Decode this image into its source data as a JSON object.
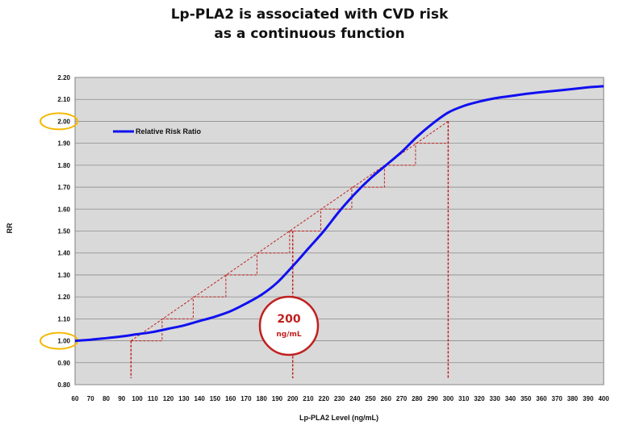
{
  "title_line1": "Lp-PLA2 is associated with CVD risk",
  "title_line2": "as a continuous function",
  "callout": {
    "value": "200",
    "unit": "ng/mL"
  },
  "colors": {
    "plot_bg": "#d9d9d9",
    "curve": "#1010f0",
    "dash": "#c0201e",
    "highlight": "#f5b800",
    "grid": "#8c8c8c"
  },
  "chart_data": {
    "type": "line",
    "xlabel": "Lp-PLA2 Level (ng/mL)",
    "ylabel": "RR",
    "xlim": [
      60,
      400
    ],
    "ylim": [
      0.8,
      2.2
    ],
    "x_ticks": [
      60,
      70,
      80,
      90,
      100,
      110,
      120,
      130,
      140,
      150,
      160,
      170,
      180,
      190,
      200,
      210,
      220,
      230,
      240,
      250,
      260,
      270,
      280,
      290,
      300,
      310,
      320,
      330,
      340,
      350,
      360,
      370,
      380,
      390,
      400
    ],
    "y_ticks": [
      0.8,
      0.9,
      1.0,
      1.1,
      1.2,
      1.3,
      1.4,
      1.5,
      1.6,
      1.7,
      1.8,
      1.9,
      2.0,
      2.1,
      2.2
    ],
    "highlighted_y_ticks": [
      1.0,
      2.0
    ],
    "grid": true,
    "legend_position": "top-left",
    "series": [
      {
        "name": "Relative Risk Ratio",
        "x": [
          60,
          70,
          80,
          90,
          100,
          110,
          120,
          130,
          140,
          150,
          160,
          170,
          180,
          190,
          200,
          210,
          220,
          230,
          240,
          250,
          260,
          270,
          280,
          290,
          300,
          310,
          320,
          330,
          340,
          350,
          360,
          370,
          380,
          390,
          400
        ],
        "y": [
          1.0,
          1.005,
          1.012,
          1.02,
          1.03,
          1.04,
          1.055,
          1.07,
          1.09,
          1.11,
          1.135,
          1.17,
          1.21,
          1.265,
          1.34,
          1.42,
          1.5,
          1.59,
          1.67,
          1.74,
          1.8,
          1.86,
          1.93,
          1.99,
          2.04,
          2.07,
          2.09,
          2.105,
          2.115,
          2.125,
          2.133,
          2.14,
          2.147,
          2.155,
          2.16
        ]
      }
    ],
    "annotation": {
      "diagonal_x": [
        96,
        300
      ],
      "diagonal_y": [
        1.0,
        2.0
      ],
      "staircase_x": [
        96,
        116,
        136,
        157,
        177,
        198,
        218,
        238,
        259,
        279,
        300
      ],
      "staircase_y": [
        1.0,
        1.1,
        1.2,
        1.3,
        1.4,
        1.5,
        1.6,
        1.7,
        1.8,
        1.9,
        2.0
      ],
      "vertical_markers_x": [
        96,
        200,
        300
      ]
    }
  }
}
